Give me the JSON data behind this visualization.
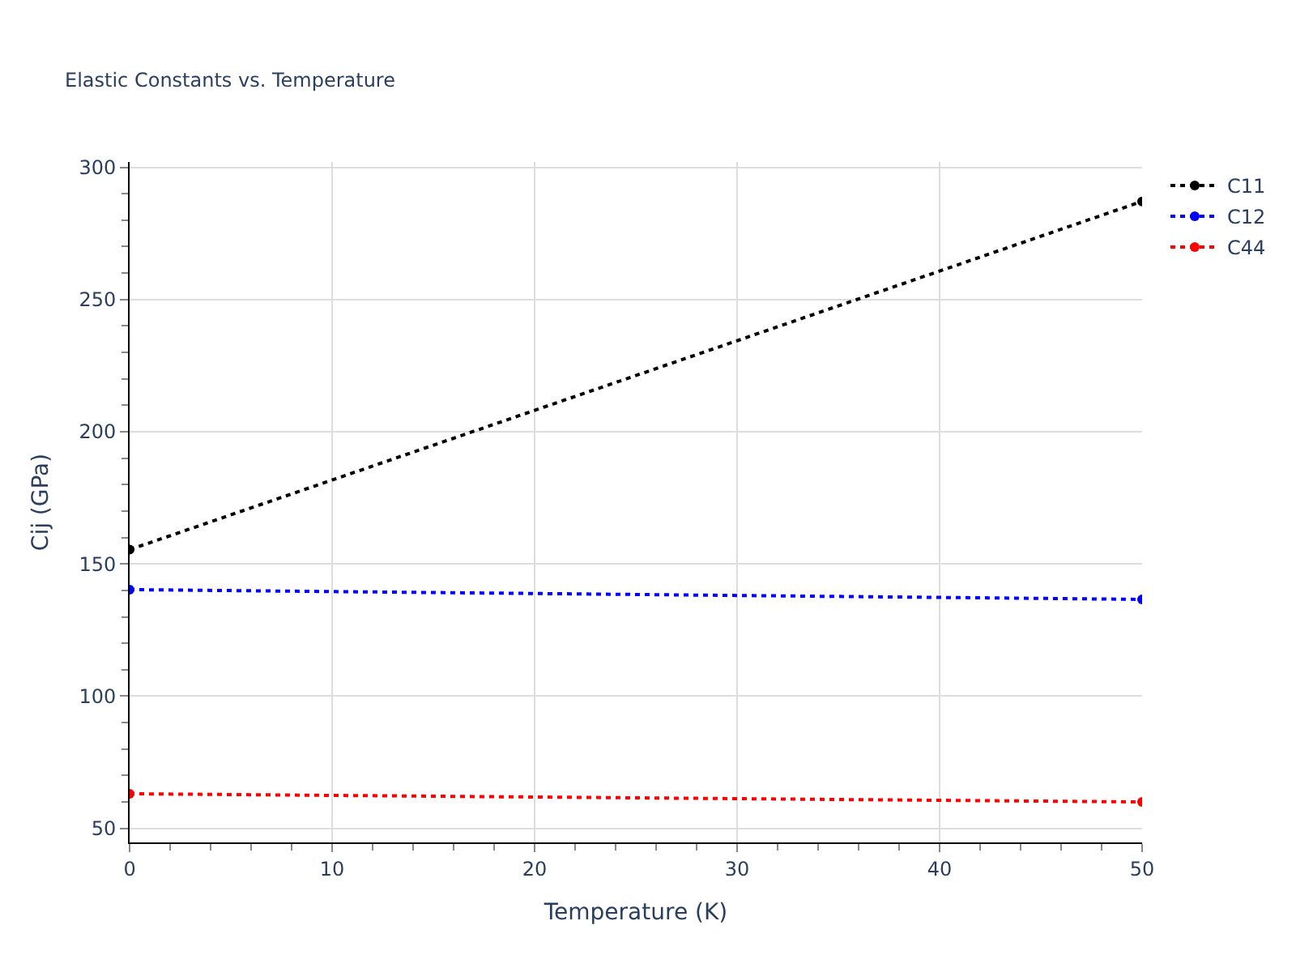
{
  "chart_data": {
    "type": "line",
    "title": "Elastic Constants vs. Temperature",
    "xlabel": "Temperature (K)",
    "ylabel": "Cij (GPa)",
    "x": [
      0,
      50
    ],
    "series": [
      {
        "name": "C11",
        "color": "#000000",
        "values": [
          155.4,
          287.1
        ]
      },
      {
        "name": "C12",
        "color": "#0000ff",
        "values": [
          140.3,
          136.6
        ]
      },
      {
        "name": "C44",
        "color": "#ff0000",
        "values": [
          63.1,
          60.0
        ]
      }
    ],
    "xlim": [
      0,
      50
    ],
    "xticks": [
      0,
      {
        "value": 2,
        "label": null
      },
      {
        "value": 4,
        "label": null
      },
      {
        "value": 6,
        "label": null
      },
      {
        "value": 8,
        "label": null
      },
      10,
      {
        "value": 12,
        "label": null
      },
      {
        "value": 14,
        "label": null
      },
      {
        "value": 16,
        "label": null
      },
      {
        "value": 18,
        "label": null
      },
      20,
      {
        "value": 22,
        "label": null
      },
      {
        "value": 24,
        "label": null
      },
      {
        "value": 26,
        "label": null
      },
      {
        "value": 28,
        "label": null
      },
      30,
      {
        "value": 32,
        "label": null
      },
      {
        "value": 34,
        "label": null
      },
      {
        "value": 36,
        "label": null
      },
      {
        "value": 38,
        "label": null
      },
      40,
      {
        "value": 42,
        "label": null
      },
      {
        "value": 44,
        "label": null
      },
      {
        "value": 46,
        "label": null
      },
      {
        "value": 48,
        "label": null
      },
      50
    ],
    "ylim": [
      44.7,
      302
    ],
    "yticks": [
      50,
      {
        "value": 60,
        "label": null
      },
      {
        "value": 70,
        "label": null
      },
      {
        "value": 80,
        "label": null
      },
      {
        "value": 90,
        "label": null
      },
      100,
      {
        "value": 110,
        "label": null
      },
      {
        "value": 120,
        "label": null
      },
      {
        "value": 130,
        "label": null
      },
      {
        "value": 140,
        "label": null
      },
      150,
      {
        "value": 160,
        "label": null
      },
      {
        "value": 170,
        "label": null
      },
      {
        "value": 180,
        "label": null
      },
      {
        "value": 190,
        "label": null
      },
      200,
      {
        "value": 210,
        "label": null
      },
      {
        "value": 220,
        "label": null
      },
      {
        "value": 230,
        "label": null
      },
      {
        "value": 240,
        "label": null
      },
      250,
      {
        "value": 260,
        "label": null
      },
      {
        "value": 270,
        "label": null
      },
      {
        "value": 280,
        "label": null
      },
      {
        "value": 290,
        "label": null
      },
      300
    ],
    "grid": true,
    "legend": "top right",
    "marker": "circle",
    "line_style": "dotted"
  }
}
